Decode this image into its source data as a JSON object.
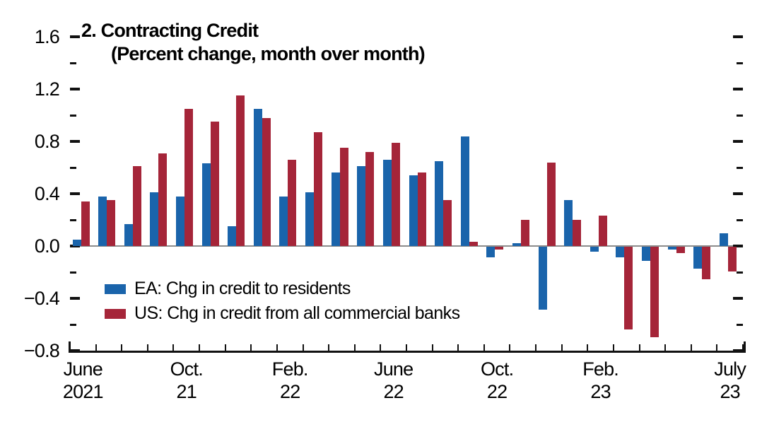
{
  "colors": {
    "ea_blue": "#1A64AB",
    "us_red": "#A52539",
    "zero_line": "#8C8C8C",
    "axis": "#111111",
    "background": "#FFFFFF"
  },
  "chart_data": {
    "type": "bar",
    "title": "2. Contracting Credit",
    "subtitle": "(Percent change, month over month)",
    "categories": [
      "Jun 2021",
      "Jul 2021",
      "Aug 2021",
      "Sep 2021",
      "Oct 2021",
      "Nov 2021",
      "Dec 2021",
      "Jan 2022",
      "Feb 2022",
      "Mar 2022",
      "Apr 2022",
      "May 2022",
      "Jun 2022",
      "Jul 2022",
      "Aug 2022",
      "Sep 2022",
      "Oct 2022",
      "Nov 2022",
      "Dec 2022",
      "Jan 2023",
      "Feb 2023",
      "Mar 2023",
      "Apr 2023",
      "May 2023",
      "Jun 2023",
      "Jul 2023"
    ],
    "series": [
      {
        "name": "EA: Chg in credit to residents",
        "color": "#1A64AB",
        "values": [
          0.05,
          0.38,
          0.17,
          0.41,
          0.38,
          0.63,
          0.15,
          1.05,
          0.38,
          0.41,
          0.56,
          0.61,
          0.66,
          0.54,
          0.65,
          0.84,
          -0.08,
          0.02,
          -0.48,
          0.35,
          -0.04,
          -0.08,
          -0.11,
          -0.02,
          -0.17,
          0.1
        ]
      },
      {
        "name": "US: Chg in credit from all commercial banks",
        "color": "#A52539",
        "values": [
          0.34,
          0.35,
          0.61,
          0.71,
          1.05,
          0.95,
          1.15,
          0.98,
          0.66,
          0.87,
          0.75,
          0.72,
          0.79,
          0.56,
          0.35,
          0.03,
          -0.02,
          0.2,
          0.64,
          0.2,
          0.23,
          -0.63,
          -0.69,
          -0.05,
          -0.25,
          -0.19
        ]
      }
    ],
    "ylim": [
      -0.8,
      1.6
    ],
    "grid": "zero-line-only",
    "legend_position": "inside-lower-left",
    "y_axis": {
      "major": [
        {
          "value": 1.6,
          "label": "1.6"
        },
        {
          "value": 1.2,
          "label": "1.2"
        },
        {
          "value": 0.8,
          "label": "0.8"
        },
        {
          "value": 0.4,
          "label": "0.4"
        },
        {
          "value": 0.0,
          "label": "0.0"
        },
        {
          "value": -0.4,
          "label": "−0.4"
        },
        {
          "value": -0.8,
          "label": "−0.8"
        }
      ],
      "minor_values": [
        1.4,
        1.0,
        0.6,
        0.2,
        -0.2,
        -0.6
      ]
    },
    "x_axis": {
      "labels": [
        {
          "line1": "June",
          "line2": "2021",
          "month_index": 0
        },
        {
          "line1": "Oct.",
          "line2": "21",
          "month_index": 4
        },
        {
          "line1": "Feb.",
          "line2": "22",
          "month_index": 8
        },
        {
          "line1": "June",
          "line2": "22",
          "month_index": 12
        },
        {
          "line1": "Oct.",
          "line2": "22",
          "month_index": 16
        },
        {
          "line1": "Feb.",
          "line2": "23",
          "month_index": 20
        },
        {
          "line1": "July",
          "line2": "23",
          "month_index": 25
        }
      ]
    }
  }
}
